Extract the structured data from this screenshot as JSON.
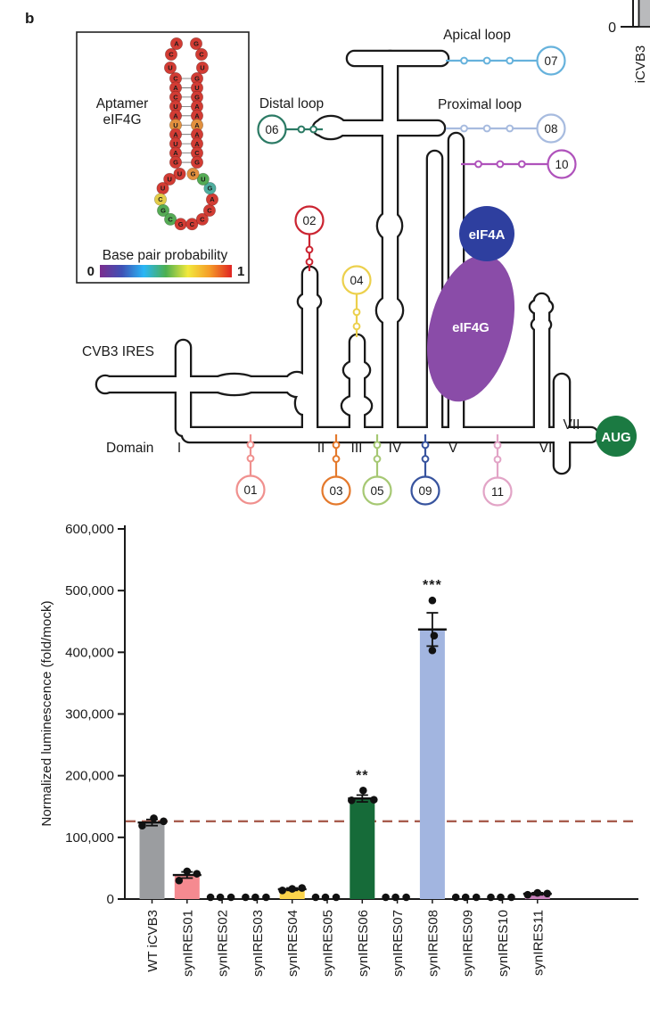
{
  "panel_label": "b",
  "fragment": {
    "tick_label": "0",
    "partial_label": "iCVB3"
  },
  "inset": {
    "title_line1": "Aptamer",
    "title_line2": "eIF4G",
    "scale_label": "Base pair probability",
    "scale_min": "0",
    "scale_max": "1",
    "gradient": [
      "#7b2d8e",
      "#3f51b5",
      "#29b6f6",
      "#4caf50",
      "#f2e93c",
      "#f59b28",
      "#e02423"
    ],
    "aptamer": {
      "color_map": {
        "r": "#d23c34",
        "o": "#e2903e",
        "y": "#e3cc49",
        "g": "#55ab55",
        "c": "#4fae9f"
      },
      "top_loop": [
        {
          "n": "U",
          "c": "r"
        },
        {
          "n": "C",
          "c": "r"
        },
        {
          "n": "A",
          "c": "r"
        },
        {
          "n": "G",
          "c": "r"
        },
        {
          "n": "C",
          "c": "r"
        },
        {
          "n": "U",
          "c": "r"
        }
      ],
      "stem_left": [
        {
          "n": "C",
          "c": "r"
        },
        {
          "n": "A",
          "c": "r"
        },
        {
          "n": "C",
          "c": "r"
        },
        {
          "n": "U",
          "c": "r"
        },
        {
          "n": "A",
          "c": "r"
        },
        {
          "n": "U",
          "c": "o"
        },
        {
          "n": "A",
          "c": "r"
        },
        {
          "n": "U",
          "c": "r"
        },
        {
          "n": "A",
          "c": "r"
        },
        {
          "n": "G",
          "c": "r"
        }
      ],
      "stem_right": [
        {
          "n": "G",
          "c": "r"
        },
        {
          "n": "U",
          "c": "r"
        },
        {
          "n": "G",
          "c": "r"
        },
        {
          "n": "A",
          "c": "r"
        },
        {
          "n": "A",
          "c": "r"
        },
        {
          "n": "A",
          "c": "o"
        },
        {
          "n": "A",
          "c": "r"
        },
        {
          "n": "A",
          "c": "r"
        },
        {
          "n": "C",
          "c": "r"
        },
        {
          "n": "G",
          "c": "r"
        }
      ],
      "bottom_loop": [
        {
          "n": "U",
          "c": "r"
        },
        {
          "n": "U",
          "c": "r"
        },
        {
          "n": "U",
          "c": "r"
        },
        {
          "n": "C",
          "c": "y"
        },
        {
          "n": "G",
          "c": "g"
        },
        {
          "n": "C",
          "c": "g"
        },
        {
          "n": "G",
          "c": "r"
        },
        {
          "n": "C",
          "c": "r"
        },
        {
          "n": "C",
          "c": "r"
        },
        {
          "n": "C",
          "c": "r"
        },
        {
          "n": "A",
          "c": "r"
        },
        {
          "n": "G",
          "c": "c"
        },
        {
          "n": "U",
          "c": "g"
        },
        {
          "n": "G",
          "c": "o"
        }
      ]
    }
  },
  "diagram": {
    "labels": {
      "apical": "Apical loop",
      "distal": "Distal loop",
      "proximal": "Proximal loop",
      "cvb3": "CVB3 IRES",
      "domain_word": "Domain"
    },
    "domains": [
      "I",
      "II",
      "III",
      "IV",
      "V",
      "VI",
      "VII"
    ],
    "aug": "AUG",
    "aug_color": "#1b7a42",
    "eif4a": "eIF4A",
    "eif4a_color": "#2e3f9f",
    "eif4g": "eIF4G",
    "eif4g_color": "#8a4ca8",
    "callouts": [
      {
        "label": "01",
        "color": "#f0908e"
      },
      {
        "label": "02",
        "color": "#cb2431"
      },
      {
        "label": "03",
        "color": "#e4792c"
      },
      {
        "label": "04",
        "color": "#ecd04c"
      },
      {
        "label": "05",
        "color": "#a6c873"
      },
      {
        "label": "06",
        "color": "#2b7a64"
      },
      {
        "label": "07",
        "color": "#66b2dc"
      },
      {
        "label": "08",
        "color": "#a7bbdf"
      },
      {
        "label": "09",
        "color": "#37539e"
      },
      {
        "label": "10",
        "color": "#af52bb"
      },
      {
        "label": "11",
        "color": "#e2a4c6"
      }
    ]
  },
  "chart_data": {
    "type": "bar",
    "title": "",
    "xlabel": "",
    "ylabel": "Normalized luminescence (fold/mock)",
    "ylim": [
      0,
      600000
    ],
    "grid": false,
    "legend": false,
    "ytick_values": [
      0,
      100000,
      200000,
      300000,
      400000,
      500000,
      600000
    ],
    "ytick_labels": [
      "0",
      "100,000",
      "200,000",
      "300,000",
      "400,000",
      "500,000",
      "600,000"
    ],
    "categories": [
      "WT iCVB3",
      "synIRES01",
      "synIRES02",
      "synIRES03",
      "synIRES04",
      "synIRES05",
      "synIRES06",
      "synIRES07",
      "synIRES08",
      "synIRES09",
      "synIRES10",
      "synIRES11"
    ],
    "values": [
      124000,
      39000,
      0,
      0,
      16000,
      0,
      163000,
      0,
      437000,
      0,
      0,
      8500
    ],
    "errors": [
      5000,
      5000,
      500,
      500,
      2000,
      500,
      5500,
      500,
      27000,
      500,
      500,
      1800
    ],
    "points": [
      [
        119000,
        131000,
        126000
      ],
      [
        30000,
        45000,
        41000
      ],
      [
        800,
        1200,
        1600
      ],
      [
        800,
        1200,
        1600
      ],
      [
        14000,
        16500,
        18000
      ],
      [
        800,
        1200,
        1600
      ],
      [
        160000,
        176000,
        161000
      ],
      [
        800,
        1200,
        1600
      ],
      [
        403000,
        427000,
        484000
      ],
      [
        800,
        1200,
        1600
      ],
      [
        800,
        1200,
        1600
      ],
      [
        7000,
        10000,
        9000
      ]
    ],
    "bar_colors": [
      "#9b9da0",
      "#f58a90",
      "none",
      "none",
      "#fbd44c",
      "none",
      "#166b39",
      "none",
      "#a2b5e0",
      "none",
      "none",
      "#c981bb"
    ],
    "significance": {
      "6": "**",
      "8": "***"
    },
    "reference_line": {
      "value": 126000,
      "color": "#a85c4e",
      "style": "dashed"
    }
  }
}
